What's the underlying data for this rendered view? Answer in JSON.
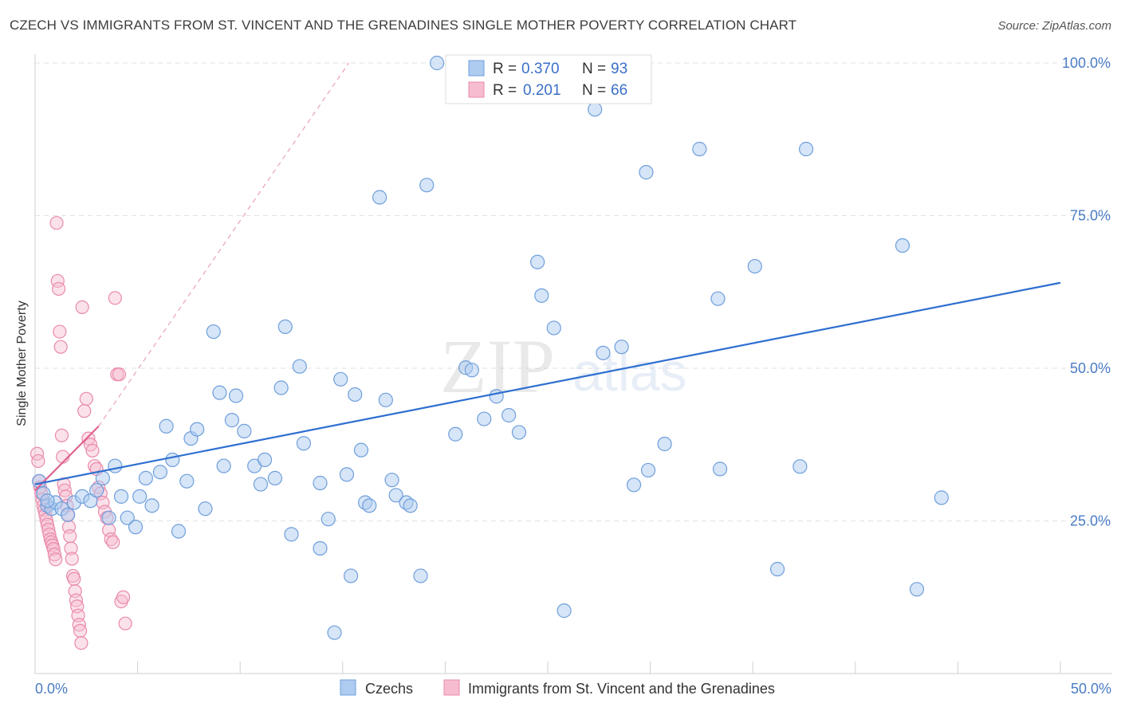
{
  "header": {
    "title": "CZECH VS IMMIGRANTS FROM ST. VINCENT AND THE GRENADINES SINGLE MOTHER POVERTY CORRELATION CHART",
    "source": "Source: ZipAtlas.com"
  },
  "watermark": {
    "zip": "ZIP",
    "atlas": "atlas"
  },
  "legend": {
    "r_label": "R =",
    "n_label": "N =",
    "czechs": {
      "r": "0.370",
      "n": "93"
    },
    "svg": {
      "r": "0.201",
      "n": "66"
    }
  },
  "colors": {
    "czechs_fill": "#aecbf0",
    "czechs_stroke": "#6f9fdc",
    "czechs_line": "#2e6fd1",
    "svg_fill": "#f7bcd0",
    "svg_stroke": "#e98aab",
    "svg_line": "#e0638f",
    "tick_label": "#4a7cc4"
  },
  "chart_data": {
    "type": "scatter",
    "title": "CZECH VS IMMIGRANTS FROM ST. VINCENT AND THE GRENADINES SINGLE MOTHER POVERTY CORRELATION CHART",
    "xlabel": "",
    "ylabel": "Single Mother Poverty",
    "xlim": [
      0,
      50
    ],
    "ylim": [
      0,
      105
    ],
    "x_tick_labels": [
      "0.0%",
      "50.0%"
    ],
    "y_tick_labels": [
      "25.0%",
      "50.0%",
      "75.0%",
      "100.0%"
    ],
    "y_ticks": [
      25,
      50,
      75,
      100
    ],
    "grid": true,
    "legend_position": "top-center",
    "series": [
      {
        "name": "Czechs",
        "r": 0.37,
        "n": 93,
        "trend": {
          "x": [
            0,
            50
          ],
          "y": [
            31,
            64
          ]
        },
        "points": [
          [
            0.2,
            31.5
          ],
          [
            0.4,
            29.5
          ],
          [
            0.6,
            27.5
          ],
          [
            0.8,
            27
          ],
          [
            1.0,
            28
          ],
          [
            1.3,
            27
          ],
          [
            1.6,
            26
          ],
          [
            1.9,
            28
          ],
          [
            2.3,
            29
          ],
          [
            2.7,
            28.3
          ],
          [
            3.0,
            30
          ],
          [
            3.3,
            32
          ],
          [
            3.6,
            25.5
          ],
          [
            3.9,
            34
          ],
          [
            4.2,
            29
          ],
          [
            4.5,
            25.5
          ],
          [
            4.9,
            24
          ],
          [
            5.1,
            29
          ],
          [
            5.4,
            32
          ],
          [
            5.7,
            27.5
          ],
          [
            6.1,
            33
          ],
          [
            6.4,
            40.5
          ],
          [
            6.7,
            35
          ],
          [
            7.0,
            23.3
          ],
          [
            7.4,
            31.5
          ],
          [
            7.6,
            38.5
          ],
          [
            7.9,
            40
          ],
          [
            8.3,
            27
          ],
          [
            8.7,
            56
          ],
          [
            9.0,
            46
          ],
          [
            9.2,
            34
          ],
          [
            9.6,
            41.5
          ],
          [
            9.8,
            45.5
          ],
          [
            10.2,
            39.7
          ],
          [
            10.7,
            34
          ],
          [
            11.0,
            31
          ],
          [
            11.2,
            35
          ],
          [
            11.7,
            32
          ],
          [
            12.0,
            46.8
          ],
          [
            12.2,
            56.8
          ],
          [
            12.5,
            22.8
          ],
          [
            12.9,
            50.3
          ],
          [
            13.1,
            37.7
          ],
          [
            13.9,
            20.5
          ],
          [
            13.9,
            31.2
          ],
          [
            14.3,
            25.3
          ],
          [
            14.6,
            6.7
          ],
          [
            14.9,
            48.2
          ],
          [
            15.2,
            32.6
          ],
          [
            15.4,
            16
          ],
          [
            15.6,
            45.7
          ],
          [
            15.9,
            36.6
          ],
          [
            16.1,
            28
          ],
          [
            16.3,
            27.5
          ],
          [
            16.8,
            78
          ],
          [
            17.1,
            44.8
          ],
          [
            17.4,
            31.7
          ],
          [
            17.6,
            29.2
          ],
          [
            18.1,
            28
          ],
          [
            18.3,
            27.5
          ],
          [
            18.8,
            16
          ],
          [
            19.1,
            80
          ],
          [
            19.6,
            100
          ],
          [
            20.5,
            39.2
          ],
          [
            21.0,
            50.1
          ],
          [
            21.3,
            49.7
          ],
          [
            21.9,
            41.7
          ],
          [
            22.5,
            45.4
          ],
          [
            23.1,
            42.3
          ],
          [
            23.6,
            39.5
          ],
          [
            24.2,
            100
          ],
          [
            24.5,
            67.4
          ],
          [
            24.7,
            61.9
          ],
          [
            25.3,
            56.6
          ],
          [
            25.8,
            10.3
          ],
          [
            27.3,
            92.4
          ],
          [
            27.7,
            52.5
          ],
          [
            28.6,
            53.5
          ],
          [
            29.2,
            30.9
          ],
          [
            29.8,
            82.1
          ],
          [
            29.9,
            33.3
          ],
          [
            30.7,
            37.6
          ],
          [
            32.4,
            85.9
          ],
          [
            33.3,
            61.4
          ],
          [
            33.4,
            33.5
          ],
          [
            35.1,
            66.7
          ],
          [
            36.2,
            17.1
          ],
          [
            37.3,
            33.9
          ],
          [
            37.6,
            85.9
          ],
          [
            42.3,
            70.1
          ],
          [
            43.0,
            13.8
          ],
          [
            44.2,
            28.8
          ],
          [
            0.6,
            28.3
          ]
        ]
      },
      {
        "name": "Immigrants from St. Vincent and the Grenadines",
        "r": 0.201,
        "n": 66,
        "trend": {
          "x": [
            0,
            3.1
          ],
          "y": [
            30,
            40.5
          ]
        },
        "trend_extension": {
          "x": [
            3.1,
            15.3
          ],
          "y": [
            40.5,
            100
          ]
        },
        "points": [
          [
            0.1,
            36
          ],
          [
            0.15,
            34.8
          ],
          [
            0.2,
            31.5
          ],
          [
            0.25,
            30.5
          ],
          [
            0.3,
            29.5
          ],
          [
            0.35,
            28.5
          ],
          [
            0.4,
            27.5
          ],
          [
            0.45,
            26.8
          ],
          [
            0.5,
            26
          ],
          [
            0.55,
            25.2
          ],
          [
            0.6,
            24.4
          ],
          [
            0.65,
            23.6
          ],
          [
            0.7,
            22.8
          ],
          [
            0.75,
            22
          ],
          [
            0.8,
            21.5
          ],
          [
            0.85,
            21
          ],
          [
            0.9,
            20.4
          ],
          [
            0.95,
            19.5
          ],
          [
            1.0,
            18.7
          ],
          [
            1.05,
            73.8
          ],
          [
            1.1,
            64.3
          ],
          [
            1.15,
            63
          ],
          [
            1.2,
            56
          ],
          [
            1.25,
            53.5
          ],
          [
            1.3,
            39
          ],
          [
            1.35,
            35.5
          ],
          [
            1.4,
            31
          ],
          [
            1.45,
            30
          ],
          [
            1.5,
            29
          ],
          [
            1.55,
            27.5
          ],
          [
            1.6,
            26
          ],
          [
            1.65,
            24
          ],
          [
            1.7,
            22.5
          ],
          [
            1.75,
            20.5
          ],
          [
            1.8,
            18.8
          ],
          [
            1.85,
            16
          ],
          [
            1.9,
            15.5
          ],
          [
            1.95,
            13.5
          ],
          [
            2.0,
            12
          ],
          [
            2.05,
            11
          ],
          [
            2.1,
            9.5
          ],
          [
            2.15,
            8
          ],
          [
            2.2,
            7
          ],
          [
            2.25,
            5
          ],
          [
            2.3,
            60
          ],
          [
            2.4,
            43
          ],
          [
            2.5,
            45
          ],
          [
            2.6,
            38.5
          ],
          [
            2.7,
            37.5
          ],
          [
            2.8,
            36.5
          ],
          [
            2.9,
            34
          ],
          [
            3.0,
            33.5
          ],
          [
            3.1,
            30.5
          ],
          [
            3.2,
            29.5
          ],
          [
            3.3,
            28
          ],
          [
            3.4,
            26.5
          ],
          [
            3.5,
            25.5
          ],
          [
            3.6,
            23.5
          ],
          [
            3.7,
            22
          ],
          [
            3.8,
            21.5
          ],
          [
            3.9,
            61.5
          ],
          [
            4.0,
            49
          ],
          [
            4.1,
            49
          ],
          [
            4.2,
            11.8
          ],
          [
            4.3,
            12.5
          ],
          [
            4.4,
            8.2
          ]
        ]
      }
    ]
  },
  "bottom_legend": {
    "czechs": "Czechs",
    "svg": "Immigrants from St. Vincent and the Grenadines"
  }
}
